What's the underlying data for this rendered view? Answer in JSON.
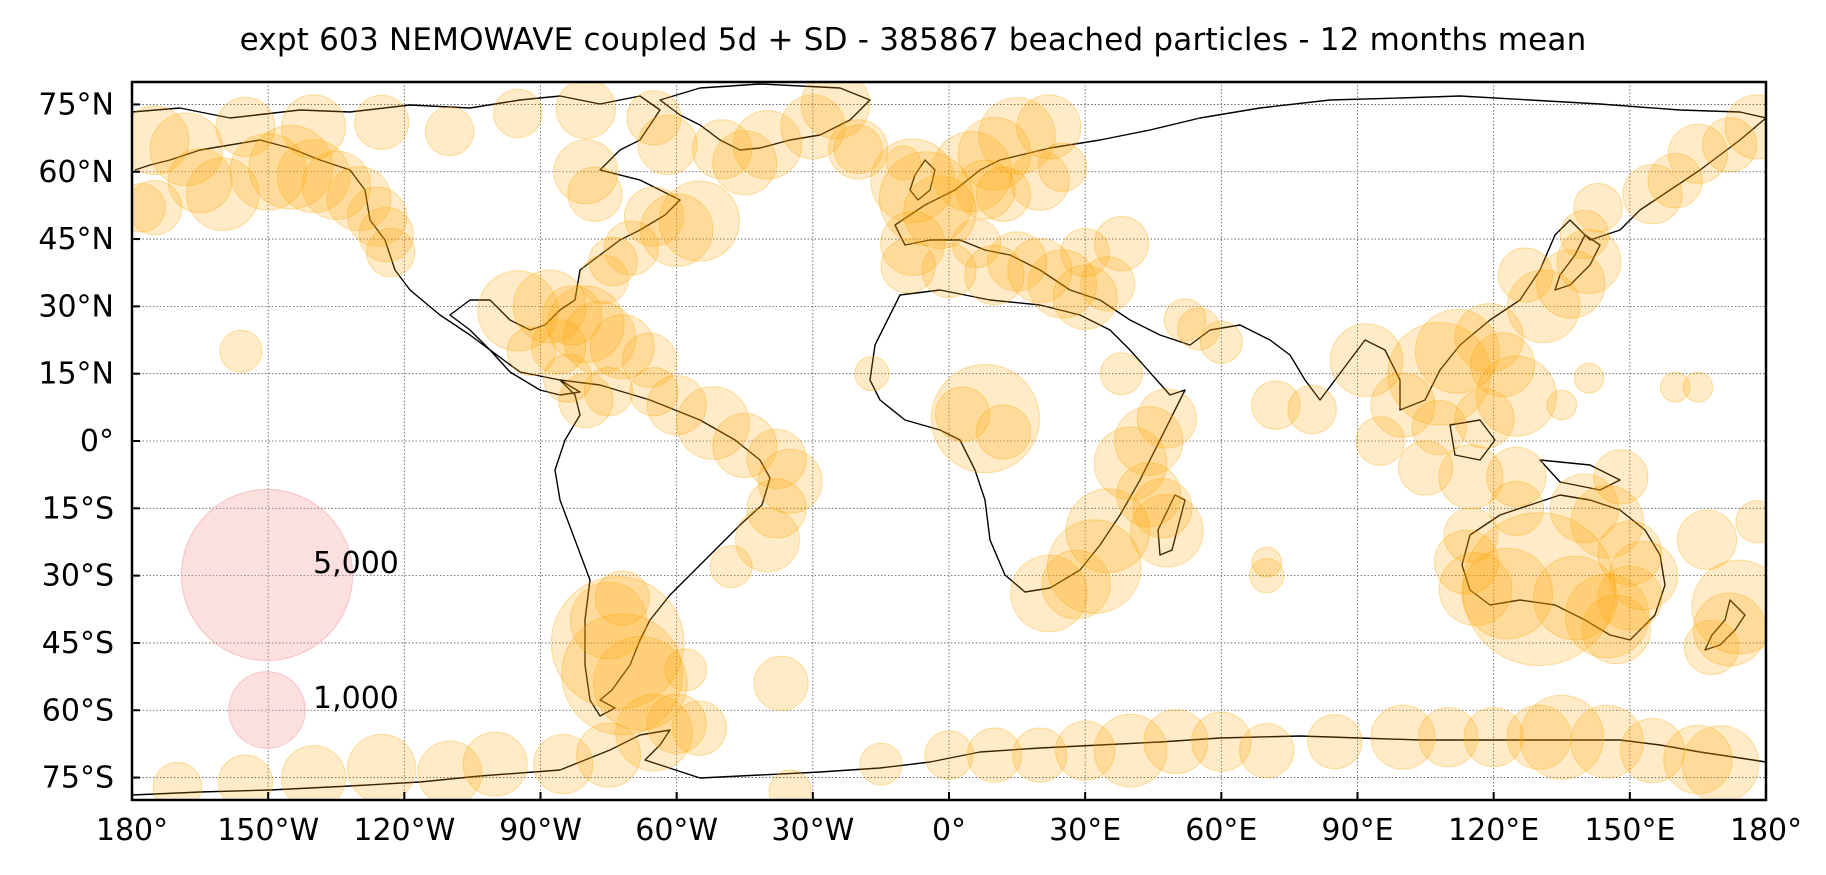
{
  "title": "expt 603 NEMOWAVE coupled 5d + SD - 385867 beached particles - 12 months mean",
  "colors": {
    "bubble": "#ffa500",
    "legend_bubble": "#f7a3a3",
    "grid": "#555555",
    "coast": "#000000"
  },
  "x_ticks": [
    {
      "lon": -180,
      "label": "180°"
    },
    {
      "lon": -150,
      "label": "150°W"
    },
    {
      "lon": -120,
      "label": "120°W"
    },
    {
      "lon": -90,
      "label": "90°W"
    },
    {
      "lon": -60,
      "label": "60°W"
    },
    {
      "lon": -30,
      "label": "30°W"
    },
    {
      "lon": 0,
      "label": "0°"
    },
    {
      "lon": 30,
      "label": "30°E"
    },
    {
      "lon": 60,
      "label": "60°E"
    },
    {
      "lon": 90,
      "label": "90°E"
    },
    {
      "lon": 120,
      "label": "120°E"
    },
    {
      "lon": 150,
      "label": "150°E"
    },
    {
      "lon": 180,
      "label": "180°"
    }
  ],
  "y_ticks": [
    {
      "lat": 75,
      "label": "75°N"
    },
    {
      "lat": 60,
      "label": "60°N"
    },
    {
      "lat": 45,
      "label": "45°N"
    },
    {
      "lat": 30,
      "label": "30°N"
    },
    {
      "lat": 15,
      "label": "15°N"
    },
    {
      "lat": 0,
      "label": "0°"
    },
    {
      "lat": -15,
      "label": "15°S"
    },
    {
      "lat": -30,
      "label": "30°S"
    },
    {
      "lat": -45,
      "label": "45°S"
    },
    {
      "lat": -60,
      "label": "60°S"
    },
    {
      "lat": -75,
      "label": "75°S"
    }
  ],
  "legend": [
    {
      "value": 5000,
      "label": "5,000"
    },
    {
      "value": 1000,
      "label": "1,000"
    }
  ],
  "chart_data": {
    "type": "scatter",
    "projection": "plate-carree",
    "xlim": [
      -180,
      180
    ],
    "ylim": [
      -80,
      80
    ],
    "grid": true,
    "size_variable": "beached particles",
    "points": [
      {
        "lon": -175,
        "lat": 67,
        "v": 800
      },
      {
        "lon": -168,
        "lat": 65,
        "v": 900
      },
      {
        "lon": -165,
        "lat": 58,
        "v": 700
      },
      {
        "lon": -175,
        "lat": 52,
        "v": 500
      },
      {
        "lon": -160,
        "lat": 55,
        "v": 900
      },
      {
        "lon": -150,
        "lat": 60,
        "v": 1000
      },
      {
        "lon": -145,
        "lat": 61,
        "v": 1200
      },
      {
        "lon": -140,
        "lat": 59,
        "v": 900
      },
      {
        "lon": -135,
        "lat": 57,
        "v": 800
      },
      {
        "lon": -130,
        "lat": 54,
        "v": 700
      },
      {
        "lon": -126,
        "lat": 50,
        "v": 600
      },
      {
        "lon": -124,
        "lat": 46,
        "v": 500
      },
      {
        "lon": -123,
        "lat": 42,
        "v": 400
      },
      {
        "lon": -155,
        "lat": 70,
        "v": 600
      },
      {
        "lon": -140,
        "lat": 70,
        "v": 700
      },
      {
        "lon": -125,
        "lat": 71,
        "v": 500
      },
      {
        "lon": -110,
        "lat": 69,
        "v": 400
      },
      {
        "lon": -95,
        "lat": 73,
        "v": 400
      },
      {
        "lon": -80,
        "lat": 74,
        "v": 600
      },
      {
        "lon": -65,
        "lat": 72,
        "v": 500
      },
      {
        "lon": -62,
        "lat": 66,
        "v": 600
      },
      {
        "lon": -80,
        "lat": 60,
        "v": 700
      },
      {
        "lon": -78,
        "lat": 55,
        "v": 500
      },
      {
        "lon": -65,
        "lat": 50,
        "v": 600
      },
      {
        "lon": -60,
        "lat": 47,
        "v": 900
      },
      {
        "lon": -55,
        "lat": 49,
        "v": 1100
      },
      {
        "lon": -70,
        "lat": 43,
        "v": 500
      },
      {
        "lon": -74,
        "lat": 40,
        "v": 400
      },
      {
        "lon": -76,
        "lat": 36,
        "v": 400
      },
      {
        "lon": -45,
        "lat": 62,
        "v": 700
      },
      {
        "lon": -40,
        "lat": 66,
        "v": 800
      },
      {
        "lon": -30,
        "lat": 70,
        "v": 700
      },
      {
        "lon": -25,
        "lat": 75,
        "v": 800
      },
      {
        "lon": -50,
        "lat": 65,
        "v": 600
      },
      {
        "lon": -20,
        "lat": 65,
        "v": 400
      },
      {
        "lon": -10,
        "lat": 62,
        "v": 200
      },
      {
        "lon": -95,
        "lat": 29,
        "v": 1100
      },
      {
        "lon": -88,
        "lat": 30,
        "v": 900
      },
      {
        "lon": -83,
        "lat": 28,
        "v": 600
      },
      {
        "lon": -80,
        "lat": 26,
        "v": 1000
      },
      {
        "lon": -77,
        "lat": 23,
        "v": 900
      },
      {
        "lon": -72,
        "lat": 21,
        "v": 700
      },
      {
        "lon": -66,
        "lat": 18,
        "v": 500
      },
      {
        "lon": -86,
        "lat": 21,
        "v": 500
      },
      {
        "lon": -92,
        "lat": 20,
        "v": 400
      },
      {
        "lon": -84,
        "lat": 14,
        "v": 400
      },
      {
        "lon": -80,
        "lat": 9,
        "v": 500
      },
      {
        "lon": -75,
        "lat": 11,
        "v": 400
      },
      {
        "lon": -65,
        "lat": 11,
        "v": 400
      },
      {
        "lon": -60,
        "lat": 8,
        "v": 600
      },
      {
        "lon": -52,
        "lat": 4,
        "v": 900
      },
      {
        "lon": -45,
        "lat": -1,
        "v": 700
      },
      {
        "lon": -38,
        "lat": -4,
        "v": 600
      },
      {
        "lon": -35,
        "lat": -9,
        "v": 700
      },
      {
        "lon": -38,
        "lat": -15,
        "v": 600
      },
      {
        "lon": -40,
        "lat": -22,
        "v": 700
      },
      {
        "lon": -48,
        "lat": -28,
        "v": 300
      },
      {
        "lon": -156,
        "lat": 20,
        "v": 300
      },
      {
        "lon": -178,
        "lat": 52,
        "v": 400
      },
      {
        "lon": -73,
        "lat": -45,
        "v": 3000
      },
      {
        "lon": -72,
        "lat": -52,
        "v": 2500
      },
      {
        "lon": -68,
        "lat": -54,
        "v": 1500
      },
      {
        "lon": -75,
        "lat": -40,
        "v": 1000
      },
      {
        "lon": -72,
        "lat": -35,
        "v": 500
      },
      {
        "lon": -58,
        "lat": -51,
        "v": 300
      },
      {
        "lon": -37,
        "lat": -54,
        "v": 500
      },
      {
        "lon": -20,
        "lat": 65,
        "v": 600
      },
      {
        "lon": -8,
        "lat": 58,
        "v": 1200
      },
      {
        "lon": -5,
        "lat": 54,
        "v": 1500
      },
      {
        "lon": -2,
        "lat": 51,
        "v": 900
      },
      {
        "lon": -8,
        "lat": 44,
        "v": 700
      },
      {
        "lon": -9,
        "lat": 39,
        "v": 500
      },
      {
        "lon": 5,
        "lat": 60,
        "v": 1100
      },
      {
        "lon": 10,
        "lat": 64,
        "v": 900
      },
      {
        "lon": 15,
        "lat": 68,
        "v": 1000
      },
      {
        "lon": 22,
        "lat": 70,
        "v": 700
      },
      {
        "lon": 8,
        "lat": 56,
        "v": 600
      },
      {
        "lon": 12,
        "lat": 55,
        "v": 500
      },
      {
        "lon": 20,
        "lat": 58,
        "v": 600
      },
      {
        "lon": 25,
        "lat": 61,
        "v": 400
      },
      {
        "lon": 0,
        "lat": 38,
        "v": 500
      },
      {
        "lon": 10,
        "lat": 37,
        "v": 600
      },
      {
        "lon": 15,
        "lat": 40,
        "v": 600
      },
      {
        "lon": 20,
        "lat": 38,
        "v": 700
      },
      {
        "lon": 25,
        "lat": 35,
        "v": 800
      },
      {
        "lon": 30,
        "lat": 32,
        "v": 700
      },
      {
        "lon": 35,
        "lat": 35,
        "v": 500
      },
      {
        "lon": 30,
        "lat": 42,
        "v": 400
      },
      {
        "lon": 38,
        "lat": 44,
        "v": 500
      },
      {
        "lon": 6,
        "lat": 44,
        "v": 400
      },
      {
        "lon": -17,
        "lat": 15,
        "v": 200
      },
      {
        "lon": 8,
        "lat": 5,
        "v": 2000
      },
      {
        "lon": 3,
        "lat": 6,
        "v": 500
      },
      {
        "lon": 12,
        "lat": 2,
        "v": 500
      },
      {
        "lon": 40,
        "lat": -5,
        "v": 900
      },
      {
        "lon": 44,
        "lat": 0,
        "v": 800
      },
      {
        "lon": 48,
        "lat": 5,
        "v": 600
      },
      {
        "lon": 35,
        "lat": -20,
        "v": 1200
      },
      {
        "lon": 32,
        "lat": -28,
        "v": 1500
      },
      {
        "lon": 28,
        "lat": -32,
        "v": 800
      },
      {
        "lon": 22,
        "lat": -34,
        "v": 1000
      },
      {
        "lon": 44,
        "lat": -12,
        "v": 700
      },
      {
        "lon": 48,
        "lat": -20,
        "v": 900
      },
      {
        "lon": 47,
        "lat": -15,
        "v": 600
      },
      {
        "lon": 38,
        "lat": 15,
        "v": 300
      },
      {
        "lon": 55,
        "lat": 25,
        "v": 300
      },
      {
        "lon": 52,
        "lat": 27,
        "v": 300
      },
      {
        "lon": 60,
        "lat": 22,
        "v": 300
      },
      {
        "lon": 70,
        "lat": -30,
        "v": 200
      },
      {
        "lon": 70,
        "lat": -27,
        "v": 150
      },
      {
        "lon": 72,
        "lat": 8,
        "v": 400
      },
      {
        "lon": 80,
        "lat": 7,
        "v": 400
      },
      {
        "lon": 92,
        "lat": 18,
        "v": 900
      },
      {
        "lon": 100,
        "lat": 8,
        "v": 700
      },
      {
        "lon": 108,
        "lat": 15,
        "v": 1800
      },
      {
        "lon": 112,
        "lat": 20,
        "v": 1200
      },
      {
        "lon": 119,
        "lat": 23,
        "v": 800
      },
      {
        "lon": 125,
        "lat": 10,
        "v": 1100
      },
      {
        "lon": 122,
        "lat": 17,
        "v": 700
      },
      {
        "lon": 108,
        "lat": 3,
        "v": 500
      },
      {
        "lon": 118,
        "lat": 5,
        "v": 600
      },
      {
        "lon": 95,
        "lat": 0,
        "v": 400
      },
      {
        "lon": 105,
        "lat": -6,
        "v": 500
      },
      {
        "lon": 115,
        "lat": -8,
        "v": 700
      },
      {
        "lon": 125,
        "lat": -8,
        "v": 600
      },
      {
        "lon": 131,
        "lat": 30,
        "v": 900
      },
      {
        "lon": 137,
        "lat": 35,
        "v": 800
      },
      {
        "lon": 141,
        "lat": 40,
        "v": 700
      },
      {
        "lon": 127,
        "lat": 37,
        "v": 500
      },
      {
        "lon": 140,
        "lat": 46,
        "v": 400
      },
      {
        "lon": 143,
        "lat": 52,
        "v": 400
      },
      {
        "lon": 155,
        "lat": 55,
        "v": 600
      },
      {
        "lon": 160,
        "lat": 58,
        "v": 500
      },
      {
        "lon": 165,
        "lat": 64,
        "v": 600
      },
      {
        "lon": 172,
        "lat": 66,
        "v": 500
      },
      {
        "lon": 178,
        "lat": 70,
        "v": 700
      },
      {
        "lon": 148,
        "lat": -8,
        "v": 500
      },
      {
        "lon": 140,
        "lat": -15,
        "v": 800
      },
      {
        "lon": 145,
        "lat": -18,
        "v": 900
      },
      {
        "lon": 150,
        "lat": -25,
        "v": 700
      },
      {
        "lon": 153,
        "lat": -30,
        "v": 800
      },
      {
        "lon": 150,
        "lat": -35,
        "v": 700
      },
      {
        "lon": 145,
        "lat": -39,
        "v": 1200
      },
      {
        "lon": 147,
        "lat": -42,
        "v": 800
      },
      {
        "lon": 138,
        "lat": -35,
        "v": 1200
      },
      {
        "lon": 130,
        "lat": -33,
        "v": 4000
      },
      {
        "lon": 123,
        "lat": -34,
        "v": 1400
      },
      {
        "lon": 116,
        "lat": -33,
        "v": 900
      },
      {
        "lon": 114,
        "lat": -27,
        "v": 700
      },
      {
        "lon": 115,
        "lat": -21,
        "v": 500
      },
      {
        "lon": 125,
        "lat": -15,
        "v": 500
      },
      {
        "lon": 167,
        "lat": -22,
        "v": 600
      },
      {
        "lon": 174,
        "lat": -37,
        "v": 1500
      },
      {
        "lon": 172,
        "lat": -42,
        "v": 900
      },
      {
        "lon": 168,
        "lat": -46,
        "v": 500
      },
      {
        "lon": 178,
        "lat": -18,
        "v": 300
      },
      {
        "lon": 160,
        "lat": 12,
        "v": 150
      },
      {
        "lon": 165,
        "lat": 12,
        "v": 150
      },
      {
        "lon": 141,
        "lat": 14,
        "v": 150
      },
      {
        "lon": 135,
        "lat": 8,
        "v": 150
      },
      {
        "lon": -170,
        "lat": -77,
        "v": 400
      },
      {
        "lon": -155,
        "lat": -76,
        "v": 500
      },
      {
        "lon": -140,
        "lat": -75,
        "v": 700
      },
      {
        "lon": -125,
        "lat": -73,
        "v": 800
      },
      {
        "lon": -110,
        "lat": -74,
        "v": 700
      },
      {
        "lon": -100,
        "lat": -72,
        "v": 700
      },
      {
        "lon": -85,
        "lat": -72,
        "v": 600
      },
      {
        "lon": -75,
        "lat": -70,
        "v": 700
      },
      {
        "lon": -65,
        "lat": -65,
        "v": 1000
      },
      {
        "lon": -60,
        "lat": -63,
        "v": 600
      },
      {
        "lon": -55,
        "lat": -64,
        "v": 500
      },
      {
        "lon": -35,
        "lat": -78,
        "v": 300
      },
      {
        "lon": -15,
        "lat": -72,
        "v": 300
      },
      {
        "lon": 0,
        "lat": -70,
        "v": 400
      },
      {
        "lon": 10,
        "lat": -70,
        "v": 500
      },
      {
        "lon": 20,
        "lat": -70,
        "v": 500
      },
      {
        "lon": 30,
        "lat": -69,
        "v": 600
      },
      {
        "lon": 40,
        "lat": -69,
        "v": 900
      },
      {
        "lon": 50,
        "lat": -67,
        "v": 700
      },
      {
        "lon": 60,
        "lat": -67,
        "v": 600
      },
      {
        "lon": 70,
        "lat": -69,
        "v": 500
      },
      {
        "lon": 85,
        "lat": -67,
        "v": 500
      },
      {
        "lon": 100,
        "lat": -66,
        "v": 700
      },
      {
        "lon": 110,
        "lat": -66,
        "v": 600
      },
      {
        "lon": 120,
        "lat": -66,
        "v": 600
      },
      {
        "lon": 130,
        "lat": -66,
        "v": 700
      },
      {
        "lon": 135,
        "lat": -66,
        "v": 1200
      },
      {
        "lon": 145,
        "lat": -67,
        "v": 900
      },
      {
        "lon": 155,
        "lat": -69,
        "v": 700
      },
      {
        "lon": 165,
        "lat": -71,
        "v": 800
      },
      {
        "lon": 170,
        "lat": -72,
        "v": 1000
      }
    ]
  }
}
